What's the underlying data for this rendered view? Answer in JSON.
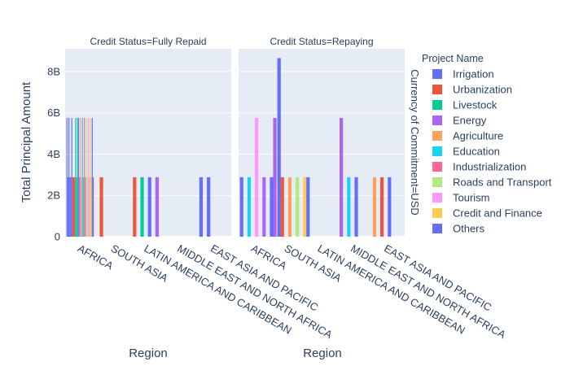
{
  "chart_data": {
    "type": "bar",
    "barmode": "group",
    "title": "",
    "xlabel": "Region",
    "ylabel": "Total Principal Amount",
    "y_ticks": [
      {
        "value": 0,
        "label": "0"
      },
      {
        "value": 2000000000,
        "label": "2B"
      },
      {
        "value": 4000000000,
        "label": "4B"
      },
      {
        "value": 6000000000,
        "label": "6B"
      },
      {
        "value": 8000000000,
        "label": "8B"
      }
    ],
    "ylim": [
      0,
      9100000000
    ],
    "grid": true,
    "side_label": "Currency of Commitment=USD",
    "legend_title": "Project Name",
    "legend_position": "right",
    "categories": [
      "AFRICA",
      "SOUTH ASIA",
      "LATIN AMERICA AND CARIBBEAN",
      "MIDDLE EAST AND NORTH AFRICA",
      "EAST ASIA AND PACIFIC"
    ],
    "series": [
      {
        "name": "Irrigation",
        "color": "#636efa"
      },
      {
        "name": "Urbanization",
        "color": "#EF553B"
      },
      {
        "name": "Livestock",
        "color": "#00cc96"
      },
      {
        "name": "Energy",
        "color": "#ab63fa"
      },
      {
        "name": "Agriculture",
        "color": "#FFA15A"
      },
      {
        "name": "Education",
        "color": "#19d3f3"
      },
      {
        "name": "Industrialization",
        "color": "#FF6692"
      },
      {
        "name": "Roads and Transport",
        "color": "#B6E880"
      },
      {
        "name": "Tourism",
        "color": "#FF97FF"
      },
      {
        "name": "Credit and Finance",
        "color": "#FECB52"
      },
      {
        "name": "Others",
        "color": "#636efa"
      }
    ],
    "facets": [
      {
        "title": "Credit Status=Fully Repaid",
        "bars": [
          {
            "category": 0,
            "series": 0,
            "values": [
              5750000000,
              2880000000,
              5750000000,
              2880000000,
              2880000000,
              5750000000
            ]
          },
          {
            "category": 0,
            "series": 1,
            "values": [
              2880000000,
              2880000000,
              2880000000
            ]
          },
          {
            "category": 0,
            "series": 2,
            "values": [
              5750000000,
              2880000000,
              5750000000
            ]
          },
          {
            "category": 0,
            "series": 3,
            "values": [
              5750000000,
              2880000000
            ]
          },
          {
            "category": 0,
            "series": 4,
            "values": [
              5750000000,
              2880000000
            ]
          },
          {
            "category": 0,
            "series": 5,
            "values": [
              5750000000,
              2880000000
            ]
          },
          {
            "category": 0,
            "series": 6,
            "values": [
              5750000000,
              2880000000
            ]
          },
          {
            "category": 0,
            "series": 7,
            "values": [
              5750000000,
              2880000000
            ]
          },
          {
            "category": 0,
            "series": 8,
            "values": [
              5750000000,
              2880000000
            ]
          },
          {
            "category": 0,
            "series": 9,
            "values": [
              5750000000,
              2880000000
            ]
          },
          {
            "category": 0,
            "series": 10,
            "values": [
              5750000000,
              2880000000
            ]
          },
          {
            "category": 1,
            "series": 1,
            "values": [
              2880000000
            ]
          },
          {
            "category": 2,
            "series": 1,
            "values": [
              2880000000
            ]
          },
          {
            "category": 2,
            "series": 2,
            "values": [
              2880000000
            ]
          },
          {
            "category": 2,
            "series": 0,
            "values": [
              2880000000
            ]
          },
          {
            "category": 2,
            "series": 3,
            "values": [
              2880000000
            ]
          },
          {
            "category": 4,
            "series": 0,
            "values": [
              2880000000,
              2880000000
            ]
          }
        ]
      },
      {
        "title": "Credit Status=Repaying",
        "bars": [
          {
            "category": 0,
            "series": 0,
            "values": [
              2880000000
            ]
          },
          {
            "category": 0,
            "series": 5,
            "values": [
              2880000000
            ]
          },
          {
            "category": 0,
            "series": 8,
            "values": [
              5750000000
            ]
          },
          {
            "category": 0,
            "series": 3,
            "values": [
              2880000000
            ]
          },
          {
            "category": 0,
            "series": 0,
            "values": [
              2880000000
            ]
          },
          {
            "category": 0,
            "series": 0,
            "values": [
              8650000000
            ]
          },
          {
            "category": 1,
            "series": 3,
            "values": [
              5750000000
            ]
          },
          {
            "category": 1,
            "series": 1,
            "values": [
              2880000000
            ]
          },
          {
            "category": 1,
            "series": 4,
            "values": [
              2880000000
            ]
          },
          {
            "category": 1,
            "series": 7,
            "values": [
              2880000000
            ]
          },
          {
            "category": 1,
            "series": 9,
            "values": [
              2880000000
            ]
          },
          {
            "category": 2,
            "series": 0,
            "values": [
              2880000000
            ]
          },
          {
            "category": 3,
            "series": 3,
            "values": [
              5750000000
            ]
          },
          {
            "category": 3,
            "series": 5,
            "values": [
              2880000000
            ]
          },
          {
            "category": 3,
            "series": 0,
            "values": [
              2880000000
            ]
          },
          {
            "category": 4,
            "series": 4,
            "values": [
              2880000000
            ]
          },
          {
            "category": 4,
            "series": 1,
            "values": [
              2880000000
            ]
          },
          {
            "category": 4,
            "series": 0,
            "values": [
              2880000000
            ]
          }
        ]
      }
    ]
  }
}
